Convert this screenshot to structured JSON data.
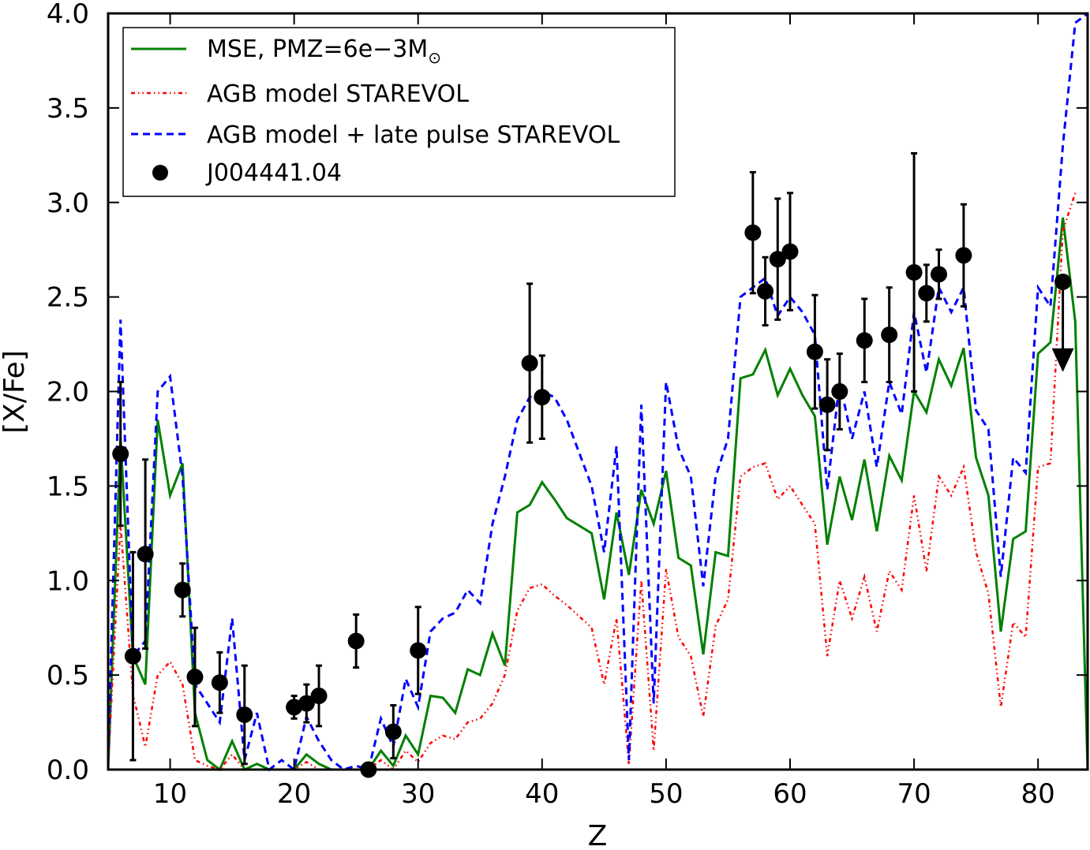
{
  "chart_data": {
    "type": "line",
    "xlabel": "Z",
    "ylabel": "[X/Fe]",
    "xlim": [
      5,
      84
    ],
    "ylim": [
      0,
      4
    ],
    "xticks": [
      "10",
      "20",
      "30",
      "40",
      "50",
      "60",
      "70",
      "80"
    ],
    "yticks": [
      "0.0",
      "0.5",
      "1.0",
      "1.5",
      "2.0",
      "2.5",
      "3.0",
      "3.5",
      "4.0"
    ],
    "legend_position": "top-left",
    "legend": {
      "mse_prefix": "MSE, PMZ=6e−3M",
      "mse_suffix": "⊙",
      "agb": "AGB model STAREVOL",
      "agb_late": "AGB model + late pulse STAREVOL",
      "star": "J004441.04"
    },
    "series": [
      {
        "name": "MSE, PMZ=6e-3M⊙",
        "color": "#008000",
        "style": "solid",
        "points": [
          [
            5,
            0.0
          ],
          [
            6,
            1.75
          ],
          [
            7,
            0.6
          ],
          [
            8,
            0.45
          ],
          [
            9,
            1.85
          ],
          [
            10,
            1.45
          ],
          [
            11,
            1.62
          ],
          [
            12,
            0.3
          ],
          [
            13,
            0.05
          ],
          [
            14,
            0.0
          ],
          [
            15,
            0.15
          ],
          [
            16,
            0.0
          ],
          [
            17,
            0.03
          ],
          [
            18,
            0.0
          ],
          [
            19,
            0.0
          ],
          [
            20,
            0.0
          ],
          [
            21,
            0.08
          ],
          [
            22,
            0.03
          ],
          [
            23,
            0.0
          ],
          [
            24,
            0.0
          ],
          [
            25,
            0.0
          ],
          [
            26,
            0.0
          ],
          [
            27,
            0.1
          ],
          [
            28,
            0.02
          ],
          [
            29,
            0.18
          ],
          [
            30,
            0.08
          ],
          [
            31,
            0.39
          ],
          [
            32,
            0.38
          ],
          [
            33,
            0.3
          ],
          [
            34,
            0.53
          ],
          [
            35,
            0.5
          ],
          [
            36,
            0.72
          ],
          [
            37,
            0.55
          ],
          [
            38,
            1.36
          ],
          [
            39,
            1.4
          ],
          [
            40,
            1.52
          ],
          [
            41,
            1.43
          ],
          [
            42,
            1.33
          ],
          [
            44,
            1.25
          ],
          [
            45,
            0.9
          ],
          [
            46,
            1.36
          ],
          [
            47,
            1.03
          ],
          [
            48,
            1.48
          ],
          [
            49,
            1.3
          ],
          [
            50,
            1.58
          ],
          [
            51,
            1.12
          ],
          [
            52,
            1.08
          ],
          [
            53,
            0.61
          ],
          [
            54,
            1.15
          ],
          [
            55,
            1.13
          ],
          [
            56,
            2.07
          ],
          [
            57,
            2.09
          ],
          [
            58,
            2.22
          ],
          [
            59,
            1.98
          ],
          [
            60,
            2.12
          ],
          [
            61,
            1.98
          ],
          [
            62,
            1.87
          ],
          [
            63,
            1.19
          ],
          [
            64,
            1.55
          ],
          [
            65,
            1.32
          ],
          [
            66,
            1.64
          ],
          [
            67,
            1.26
          ],
          [
            68,
            1.66
          ],
          [
            69,
            1.53
          ],
          [
            70,
            2.0
          ],
          [
            71,
            1.89
          ],
          [
            72,
            2.17
          ],
          [
            73,
            2.03
          ],
          [
            74,
            2.23
          ],
          [
            75,
            1.65
          ],
          [
            76,
            1.45
          ],
          [
            77,
            0.73
          ],
          [
            78,
            1.22
          ],
          [
            79,
            1.26
          ],
          [
            80,
            2.2
          ],
          [
            81,
            2.26
          ],
          [
            82,
            2.92
          ],
          [
            83,
            2.37
          ],
          [
            84,
            0.0
          ]
        ]
      },
      {
        "name": "AGB model STAREVOL",
        "color": "#ff0000",
        "style": "dashdot",
        "points": [
          [
            5,
            0.02
          ],
          [
            6,
            1.3
          ],
          [
            7,
            0.4
          ],
          [
            8,
            0.12
          ],
          [
            9,
            0.5
          ],
          [
            10,
            0.57
          ],
          [
            11,
            0.45
          ],
          [
            12,
            0.05
          ],
          [
            13,
            0.02
          ],
          [
            14,
            0.0
          ],
          [
            15,
            0.08
          ],
          [
            16,
            0.0
          ],
          [
            17,
            0.0
          ],
          [
            18,
            0.0
          ],
          [
            19,
            0.0
          ],
          [
            20,
            0.0
          ],
          [
            21,
            0.04
          ],
          [
            22,
            0.0
          ],
          [
            23,
            0.0
          ],
          [
            24,
            0.0
          ],
          [
            25,
            0.0
          ],
          [
            26,
            0.0
          ],
          [
            27,
            0.05
          ],
          [
            28,
            0.0
          ],
          [
            29,
            0.1
          ],
          [
            30,
            0.04
          ],
          [
            31,
            0.14
          ],
          [
            32,
            0.18
          ],
          [
            33,
            0.16
          ],
          [
            34,
            0.25
          ],
          [
            35,
            0.27
          ],
          [
            36,
            0.35
          ],
          [
            37,
            0.5
          ],
          [
            38,
            0.84
          ],
          [
            39,
            0.96
          ],
          [
            40,
            0.98
          ],
          [
            41,
            0.92
          ],
          [
            42,
            0.87
          ],
          [
            44,
            0.75
          ],
          [
            45,
            0.45
          ],
          [
            46,
            0.8
          ],
          [
            47,
            0.03
          ],
          [
            48,
            1.0
          ],
          [
            49,
            0.1
          ],
          [
            50,
            1.06
          ],
          [
            51,
            0.7
          ],
          [
            52,
            0.6
          ],
          [
            53,
            0.28
          ],
          [
            54,
            0.76
          ],
          [
            55,
            0.9
          ],
          [
            56,
            1.55
          ],
          [
            57,
            1.6
          ],
          [
            58,
            1.62
          ],
          [
            59,
            1.43
          ],
          [
            60,
            1.5
          ],
          [
            61,
            1.4
          ],
          [
            62,
            1.3
          ],
          [
            63,
            0.6
          ],
          [
            64,
            1.0
          ],
          [
            65,
            0.8
          ],
          [
            66,
            1.02
          ],
          [
            67,
            0.73
          ],
          [
            68,
            1.05
          ],
          [
            69,
            0.95
          ],
          [
            70,
            1.45
          ],
          [
            71,
            1.05
          ],
          [
            72,
            1.55
          ],
          [
            73,
            1.45
          ],
          [
            74,
            1.6
          ],
          [
            75,
            1.15
          ],
          [
            76,
            0.93
          ],
          [
            77,
            0.33
          ],
          [
            78,
            0.78
          ],
          [
            79,
            0.7
          ],
          [
            80,
            1.6
          ],
          [
            81,
            1.62
          ],
          [
            82,
            2.85
          ],
          [
            83,
            3.05
          ]
        ]
      },
      {
        "name": "AGB model + late pulse STAREVOL",
        "color": "#0000ff",
        "style": "dashed",
        "points": [
          [
            5,
            0.05
          ],
          [
            6,
            2.38
          ],
          [
            7,
            0.6
          ],
          [
            8,
            0.68
          ],
          [
            9,
            2.0
          ],
          [
            10,
            2.08
          ],
          [
            11,
            1.55
          ],
          [
            12,
            0.45
          ],
          [
            13,
            0.35
          ],
          [
            14,
            0.25
          ],
          [
            15,
            0.8
          ],
          [
            16,
            0.05
          ],
          [
            17,
            0.3
          ],
          [
            18,
            0.0
          ],
          [
            19,
            0.05
          ],
          [
            20,
            0.0
          ],
          [
            21,
            0.28
          ],
          [
            22,
            0.15
          ],
          [
            23,
            0.05
          ],
          [
            24,
            0.0
          ],
          [
            25,
            0.02
          ],
          [
            26,
            0.0
          ],
          [
            27,
            0.27
          ],
          [
            28,
            0.12
          ],
          [
            29,
            0.48
          ],
          [
            30,
            0.33
          ],
          [
            31,
            0.73
          ],
          [
            32,
            0.8
          ],
          [
            33,
            0.83
          ],
          [
            34,
            0.95
          ],
          [
            35,
            0.88
          ],
          [
            36,
            1.3
          ],
          [
            37,
            1.55
          ],
          [
            38,
            1.85
          ],
          [
            39,
            1.97
          ],
          [
            40,
            2.0
          ],
          [
            41,
            1.97
          ],
          [
            42,
            1.85
          ],
          [
            44,
            1.5
          ],
          [
            45,
            1.15
          ],
          [
            46,
            1.71
          ],
          [
            47,
            0.05
          ],
          [
            48,
            1.93
          ],
          [
            49,
            0.35
          ],
          [
            50,
            2.05
          ],
          [
            51,
            1.7
          ],
          [
            52,
            1.55
          ],
          [
            53,
            0.97
          ],
          [
            54,
            1.55
          ],
          [
            55,
            1.75
          ],
          [
            56,
            2.5
          ],
          [
            57,
            2.55
          ],
          [
            58,
            2.6
          ],
          [
            59,
            2.4
          ],
          [
            60,
            2.5
          ],
          [
            61,
            2.42
          ],
          [
            62,
            2.3
          ],
          [
            63,
            1.48
          ],
          [
            64,
            2.05
          ],
          [
            65,
            1.75
          ],
          [
            66,
            2.0
          ],
          [
            67,
            1.6
          ],
          [
            68,
            2.05
          ],
          [
            69,
            1.88
          ],
          [
            70,
            2.42
          ],
          [
            71,
            2.1
          ],
          [
            72,
            2.55
          ],
          [
            73,
            2.42
          ],
          [
            74,
            2.55
          ],
          [
            75,
            1.9
          ],
          [
            76,
            1.8
          ],
          [
            77,
            1.02
          ],
          [
            78,
            1.65
          ],
          [
            79,
            1.57
          ],
          [
            80,
            2.55
          ],
          [
            81,
            2.45
          ],
          [
            82,
            3.3
          ],
          [
            83,
            3.95
          ],
          [
            84,
            4.0
          ]
        ]
      },
      {
        "name": "J004441.04",
        "type": "errorbar",
        "color": "#000000",
        "points": [
          {
            "z": 6,
            "value": 1.67,
            "err": 0.38
          },
          {
            "z": 7,
            "value": 0.6,
            "err": 0.55
          },
          {
            "z": 8,
            "value": 1.14,
            "err": 0.5
          },
          {
            "z": 11,
            "value": 0.95,
            "err": 0.14
          },
          {
            "z": 12,
            "value": 0.49,
            "err": 0.26
          },
          {
            "z": 14,
            "value": 0.46,
            "err": 0.16
          },
          {
            "z": 16,
            "value": 0.29,
            "err": 0.26
          },
          {
            "z": 20,
            "value": 0.33,
            "err": 0.06
          },
          {
            "z": 21,
            "value": 0.35,
            "err": 0.1
          },
          {
            "z": 22,
            "value": 0.39,
            "err": 0.16
          },
          {
            "z": 25,
            "value": 0.68,
            "err": 0.14
          },
          {
            "z": 26,
            "value": 0.0,
            "err": 0.0
          },
          {
            "z": 28,
            "value": 0.2,
            "err": 0.14
          },
          {
            "z": 30,
            "value": 0.63,
            "err": 0.23
          },
          {
            "z": 39,
            "value": 2.15,
            "err": 0.42
          },
          {
            "z": 40,
            "value": 1.97,
            "err": 0.22
          },
          {
            "z": 57,
            "value": 2.84,
            "err": 0.32
          },
          {
            "z": 58,
            "value": 2.53,
            "err": 0.18
          },
          {
            "z": 59,
            "value": 2.7,
            "err": 0.32
          },
          {
            "z": 60,
            "value": 2.74,
            "err": 0.31
          },
          {
            "z": 62,
            "value": 2.21,
            "err": 0.3
          },
          {
            "z": 63,
            "value": 1.93,
            "err": 0.24
          },
          {
            "z": 64,
            "value": 2.0,
            "err": 0.2
          },
          {
            "z": 66,
            "value": 2.27,
            "err": 0.22
          },
          {
            "z": 68,
            "value": 2.3,
            "err": 0.25
          },
          {
            "z": 70,
            "value": 2.63,
            "err": 0.63
          },
          {
            "z": 71,
            "value": 2.52,
            "err": 0.15
          },
          {
            "z": 72,
            "value": 2.62,
            "err": 0.13
          },
          {
            "z": 74,
            "value": 2.72,
            "err": 0.27
          },
          {
            "z": 82,
            "value": 2.58,
            "err": 0.0,
            "upper_limit": true,
            "limit_to": 2.12
          }
        ]
      }
    ]
  }
}
